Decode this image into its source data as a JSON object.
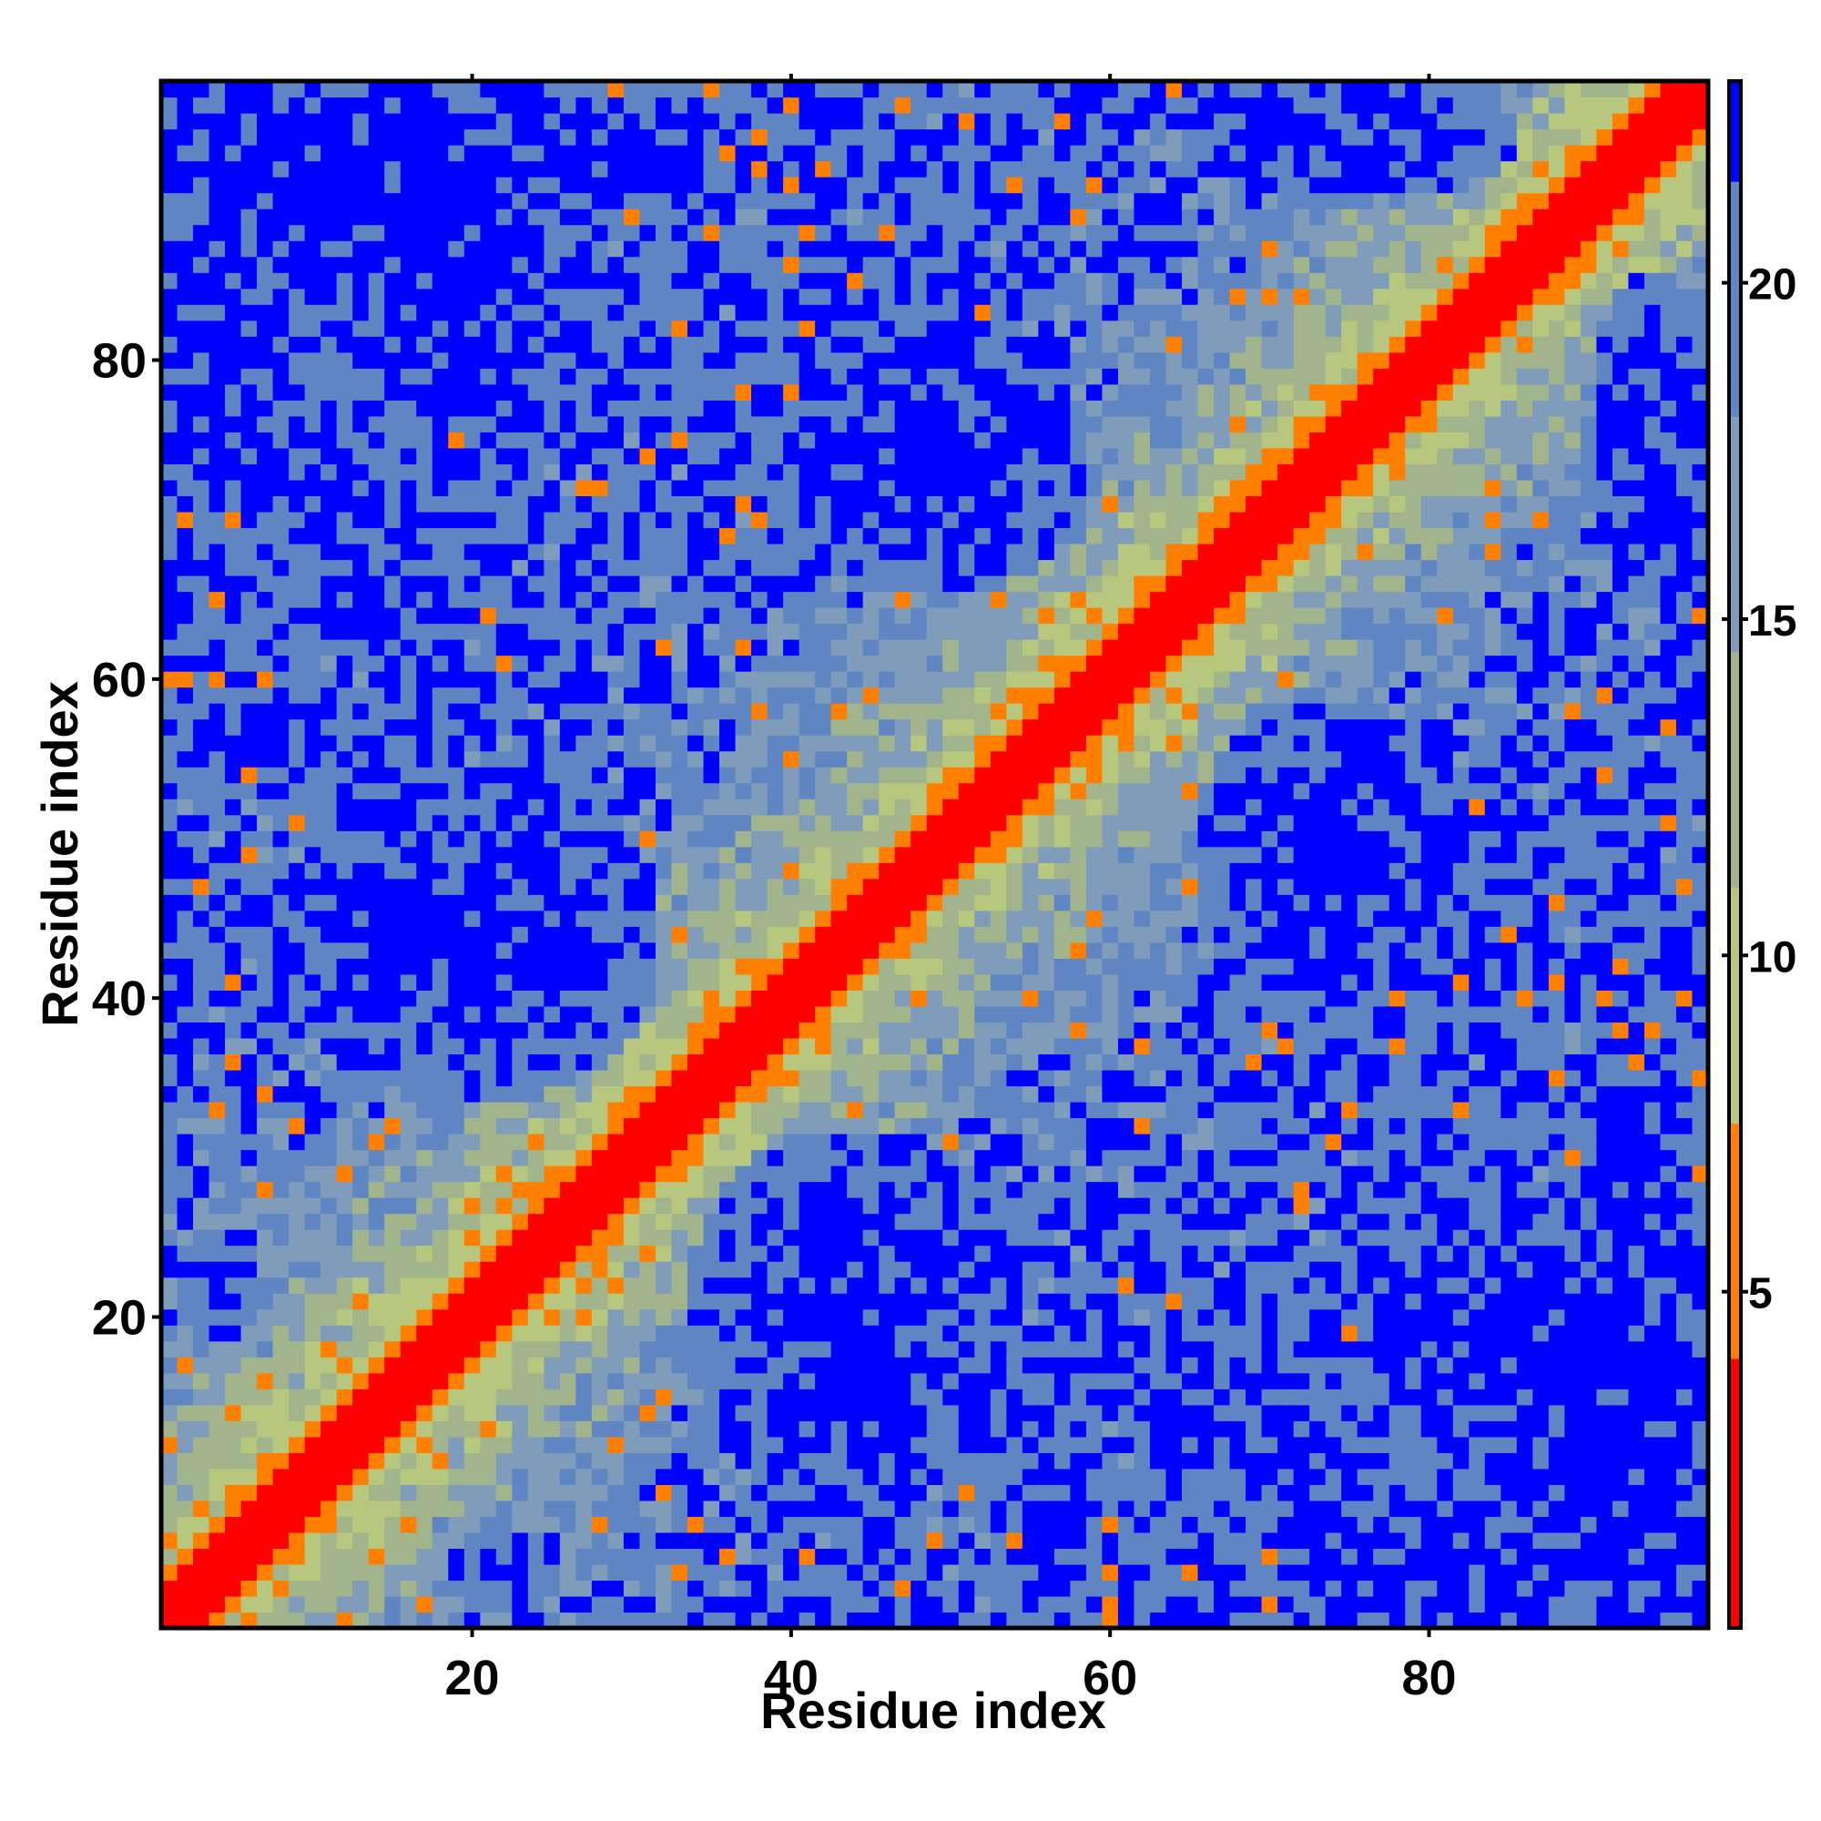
{
  "chart_data": {
    "type": "heatmap",
    "title": "",
    "xlabel": "Residue index",
    "ylabel": "Residue index",
    "n_residues": 97,
    "xlim": [
      0.5,
      97.5
    ],
    "ylim": [
      0.5,
      97.5
    ],
    "x_ticks": [
      20,
      40,
      60,
      80
    ],
    "y_ticks": [
      20,
      40,
      60,
      80
    ],
    "tick_labels_x": [
      "20",
      "40",
      "60",
      "80"
    ],
    "tick_labels_y": [
      "20",
      "40",
      "60",
      "80"
    ],
    "colorbar": {
      "range": [
        0,
        23
      ],
      "ticks": [
        5,
        10,
        15,
        20
      ],
      "tick_labels": [
        "5",
        "10",
        "15",
        "20"
      ],
      "bands": [
        {
          "from": 0,
          "to": 4,
          "color": "#ff0000"
        },
        {
          "from": 4,
          "to": 7.5,
          "color": "#ff8000"
        },
        {
          "from": 7.5,
          "to": 11,
          "color": "#b8c77e"
        },
        {
          "from": 11,
          "to": 14.5,
          "color": "#a1b48c"
        },
        {
          "from": 14.5,
          "to": 18,
          "color": "#7f9dbb"
        },
        {
          "from": 18,
          "to": 21.5,
          "color": "#5f86c2"
        },
        {
          "from": 21.5,
          "to": 23,
          "color": "#0000ff"
        }
      ]
    },
    "blue_regions": [
      {
        "cx": 20,
        "cy": 44,
        "rx": 12,
        "ry": 11
      },
      {
        "cx": 44,
        "cy": 20,
        "rx": 11,
        "ry": 12
      },
      {
        "cx": 49,
        "cy": 74,
        "rx": 10,
        "ry": 9
      },
      {
        "cx": 74,
        "cy": 49,
        "rx": 9,
        "ry": 10
      },
      {
        "cx": 12,
        "cy": 92,
        "rx": 17,
        "ry": 7
      },
      {
        "cx": 92,
        "cy": 12,
        "rx": 7,
        "ry": 17
      },
      {
        "cx": 4,
        "cy": 80,
        "rx": 5,
        "ry": 10
      },
      {
        "cx": 80,
        "cy": 4,
        "rx": 10,
        "ry": 5
      },
      {
        "cx": 94,
        "cy": 75,
        "rx": 4,
        "ry": 11
      },
      {
        "cx": 75,
        "cy": 94,
        "rx": 11,
        "ry": 4
      },
      {
        "cx": 84,
        "cy": 20,
        "rx": 8,
        "ry": 8
      },
      {
        "cx": 20,
        "cy": 84,
        "rx": 8,
        "ry": 8
      },
      {
        "cx": 4,
        "cy": 22,
        "rx": 3,
        "ry": 4
      },
      {
        "cx": 22,
        "cy": 4,
        "rx": 4,
        "ry": 3
      },
      {
        "cx": 30,
        "cy": 93,
        "rx": 6,
        "ry": 4
      },
      {
        "cx": 93,
        "cy": 30,
        "rx": 4,
        "ry": 6
      }
    ],
    "description_of_values": "Symmetric residue-residue distance map: near-zero distances along the main diagonal rising with |i-j|; distance saturates (>21.5) in blue regions."
  },
  "axes": {
    "xlabel": "Residue index",
    "ylabel": "Residue index"
  }
}
